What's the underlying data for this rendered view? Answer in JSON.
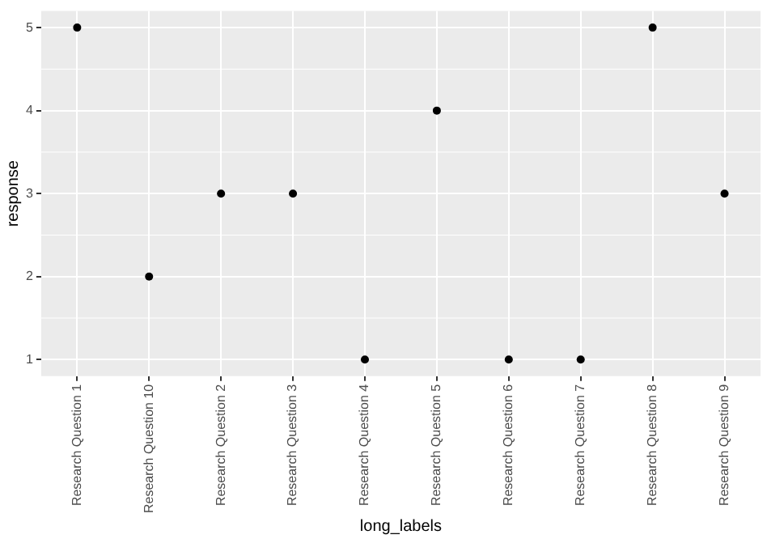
{
  "chart_data": {
    "type": "scatter",
    "xlabel": "long_labels",
    "ylabel": "response",
    "categories": [
      "Research Question 1",
      "Research Question 10",
      "Research Question 2",
      "Research Question 3",
      "Research Question 4",
      "Research Question 5",
      "Research Question 6",
      "Research Question 7",
      "Research Question 8",
      "Research Question 9"
    ],
    "series": [
      {
        "color": "#000000",
        "values": [
          5,
          2,
          3,
          3,
          1,
          4,
          1,
          1,
          5,
          3
        ]
      }
    ],
    "ylim": [
      0.8,
      5.2
    ],
    "yticks": [
      1,
      2,
      3,
      4,
      5
    ],
    "grid": true,
    "legend": false,
    "marker": "circle"
  }
}
